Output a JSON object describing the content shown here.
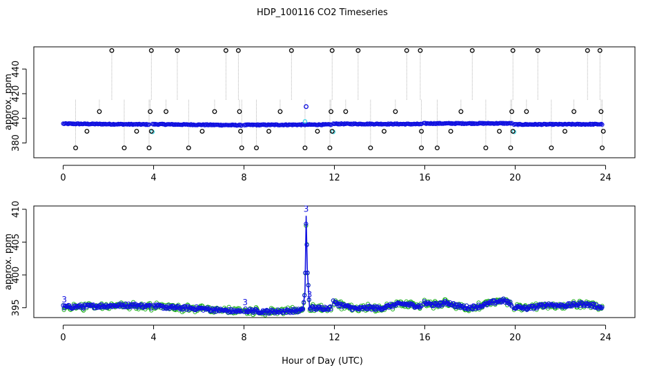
{
  "colors": {
    "black": "#000000",
    "blue": "#1010e0",
    "cyan": "#30d0e0",
    "green": "#20b020",
    "drop": "#a0a0a0"
  },
  "chart_data": [
    {
      "type": "scatter",
      "title": "HDP_100116  CO2 Timeseries",
      "xlabel": "",
      "ylabel": "approx. ppm",
      "xlim": [
        -1.3,
        25.3
      ],
      "ylim": [
        368,
        458
      ],
      "xticks": [
        0,
        4,
        8,
        12,
        16,
        20,
        24
      ],
      "yticks": [
        380,
        400,
        420,
        440
      ],
      "segments": [
        {
          "x0": 0.0,
          "x1": 3.8,
          "y0": 395.6,
          "y1": 395.0
        },
        {
          "x0": 3.95,
          "x1": 7.9,
          "y0": 395.2,
          "y1": 394.4
        },
        {
          "x0": 8.0,
          "x1": 11.85,
          "y0": 394.6,
          "y1": 394.9
        },
        {
          "x0": 11.95,
          "x1": 15.85,
          "y0": 395.5,
          "y1": 395.3
        },
        {
          "x0": 15.95,
          "x1": 19.85,
          "y0": 395.8,
          "y1": 395.9
        },
        {
          "x0": 19.95,
          "x1": 23.85,
          "y0": 395.0,
          "y1": 395.2
        }
      ],
      "high_outliers": [
        2.15,
        3.9,
        5.05,
        7.2,
        7.75,
        10.1,
        11.9,
        13.05,
        15.2,
        15.8,
        18.1,
        19.9,
        21.0,
        23.2,
        23.75
      ],
      "high_value": 455,
      "mid_outliers": [
        1.6,
        3.85,
        4.55,
        6.7,
        7.8,
        9.6,
        11.85,
        12.5,
        14.7,
        17.6,
        19.85,
        20.5,
        22.6,
        23.8
      ],
      "mid_value": 405.5,
      "low_outliers": [
        0.55,
        2.7,
        3.8,
        5.55,
        7.9,
        8.55,
        10.7,
        11.8,
        13.6,
        15.85,
        16.55,
        18.7,
        19.8,
        21.6,
        23.85
      ],
      "low_value": 376,
      "small_low_outliers": [
        1.05,
        3.25,
        3.9,
        6.15,
        7.85,
        9.1,
        11.25,
        11.9,
        14.2,
        15.85,
        17.15,
        19.3,
        19.9,
        22.2,
        23.9
      ],
      "small_low_value": 389.5,
      "spike": {
        "x": 10.75,
        "y": 409.5
      }
    },
    {
      "type": "line",
      "title": "",
      "xlabel": "Hour of Day (UTC)",
      "ylabel": "approx. ppm",
      "xlim": [
        -1.3,
        25.3
      ],
      "ylim": [
        393.5,
        410.5
      ],
      "xticks": [
        0,
        4,
        8,
        12,
        16,
        20,
        24
      ],
      "yticks": [
        395,
        400,
        405,
        410
      ],
      "series": [
        {
          "x": [
            0,
            1,
            2,
            3,
            3.9
          ],
          "y": [
            395.1,
            395.2,
            395.3,
            395.4,
            395.2
          ]
        },
        {
          "x": [
            4.0,
            5,
            6,
            7,
            7.9
          ],
          "y": [
            395.2,
            395.0,
            394.9,
            394.6,
            394.4
          ]
        },
        {
          "x": [
            8.0,
            9,
            10,
            10.6,
            10.7,
            10.75,
            10.8,
            10.9,
            11.2,
            11.85
          ],
          "y": [
            394.6,
            394.4,
            394.5,
            394.6,
            397.5,
            409.0,
            401.0,
            395.0,
            394.9,
            395.0
          ]
        },
        {
          "x": [
            11.95,
            12.5,
            13,
            13.5,
            14,
            14.5,
            15,
            15.85
          ],
          "y": [
            395.8,
            395.2,
            394.8,
            395.0,
            394.9,
            395.3,
            395.6,
            395.2
          ]
        },
        {
          "x": [
            15.95,
            16.5,
            17,
            17.5,
            18,
            18.5,
            19,
            19.5,
            19.85
          ],
          "y": [
            395.7,
            395.4,
            395.8,
            395.2,
            395.0,
            395.3,
            395.8,
            396.1,
            395.5
          ]
        },
        {
          "x": [
            19.95,
            20.5,
            21,
            21.5,
            22,
            22.5,
            23,
            23.5,
            23.85
          ],
          "y": [
            395.1,
            394.9,
            395.2,
            395.5,
            395.3,
            395.4,
            395.6,
            395.3,
            395.0
          ]
        }
      ],
      "annotations": [
        {
          "text": "3",
          "x": 10.75,
          "y": 409.6
        },
        {
          "text": "3",
          "x": 10.9,
          "y": 396.6
        },
        {
          "text": "3",
          "x": 0.05,
          "y": 395.8
        },
        {
          "text": "3",
          "x": 8.05,
          "y": 395.4
        }
      ]
    }
  ]
}
